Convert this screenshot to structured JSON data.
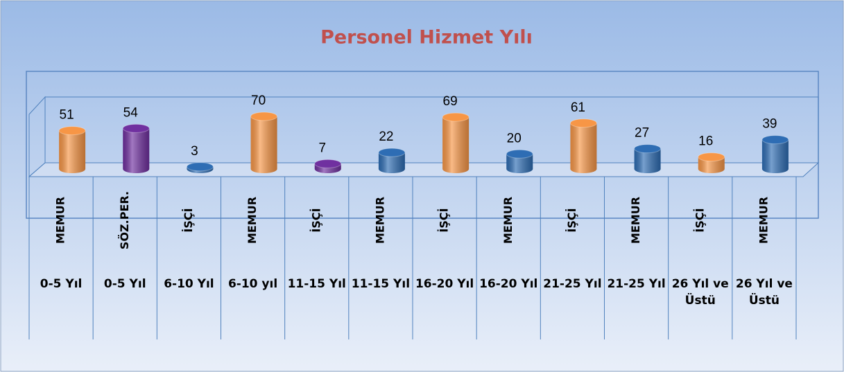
{
  "chart_data": {
    "type": "bar3d",
    "title": "Personel Hizmet Yılı",
    "categories": [
      "MEMUR",
      "SÖZ.PER.",
      "İŞÇİ",
      "MEMUR",
      "İŞÇİ",
      "MEMUR",
      "İŞÇİ",
      "MEMUR",
      "İŞÇİ",
      "MEMUR",
      "İŞÇİ",
      "MEMUR"
    ],
    "category_groups": [
      "0-5 Yıl",
      "0-5 Yıl",
      "6-10 Yıl",
      "6-10 yıl",
      "11-15 Yıl",
      "11-15 Yıl",
      "16-20 Yıl",
      "16-20 Yıl",
      "21-25 Yıl",
      "21-25 Yıl",
      "26 Yıl ve Üstü",
      "26 Yıl ve Üstü"
    ],
    "values": [
      51,
      54,
      3,
      70,
      7,
      22,
      69,
      20,
      61,
      27,
      16,
      39
    ],
    "colors": [
      "#f79646",
      "#7030a0",
      "#2e6db4",
      "#f79646",
      "#7030a0",
      "#2e6db4",
      "#f79646",
      "#2e6db4",
      "#f79646",
      "#2e6db4",
      "#f79646",
      "#2e6db4"
    ]
  }
}
